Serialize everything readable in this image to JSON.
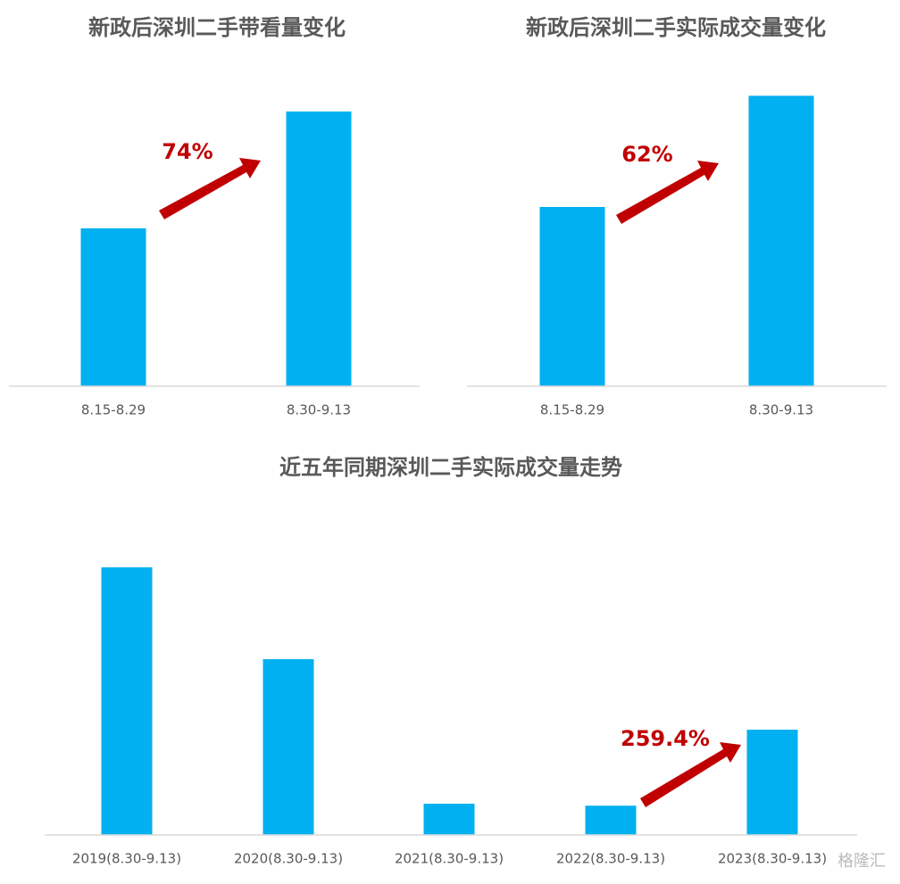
{
  "chart_data": [
    {
      "type": "bar",
      "title": "新政后深圳二手带看量变化",
      "categories": [
        "8.15-8.29",
        "8.30-9.13"
      ],
      "values": [
        100,
        174
      ],
      "color": "#00b0f0",
      "ylim": [
        0,
        200
      ],
      "annotation": "74%"
    },
    {
      "type": "bar",
      "title": "新政后深圳二手实际成交量变化",
      "categories": [
        "8.15-8.29",
        "8.30-9.13"
      ],
      "values": [
        100,
        162
      ],
      "color": "#00b0f0",
      "ylim": [
        0,
        200
      ],
      "annotation": "62%"
    },
    {
      "type": "bar",
      "title": "近五年同期深圳二手实际成交量走势",
      "categories": [
        "2019(8.30-9.13)",
        "2020(8.30-9.13)",
        "2021(8.30-9.13)",
        "2022(8.30-9.13)",
        "2023(8.30-9.13)"
      ],
      "values": [
        300,
        197,
        35,
        32.8,
        118
      ],
      "color": "#00b0f0",
      "ylim": [
        0,
        350
      ],
      "annotation": "259.4%"
    }
  ],
  "watermark": "格隆汇"
}
